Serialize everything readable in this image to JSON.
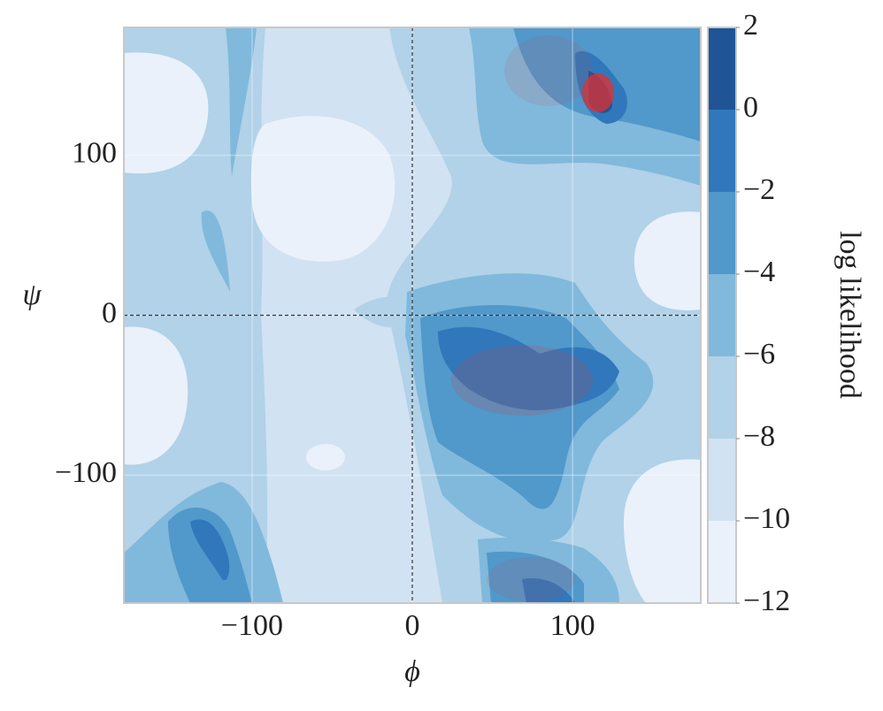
{
  "chart_data": {
    "type": "contour",
    "xlabel": "ϕ",
    "ylabel": "ψ",
    "colorbar_label": "log likelihood",
    "xlim": [
      -180,
      180
    ],
    "ylim": [
      -180,
      180
    ],
    "xticks": [
      {
        "value": -100,
        "label": "−100"
      },
      0,
      100
    ],
    "yticks": [
      {
        "value": -100,
        "label": "−100"
      },
      0,
      100
    ],
    "grid": true,
    "hlines": [
      0
    ],
    "vlines": [
      0
    ],
    "levels": [
      -12,
      -10,
      -8,
      -6,
      -4,
      -2,
      0,
      2
    ],
    "colors": [
      "#eaf1fa",
      "#d1e2f2",
      "#b1d2e8",
      "#80b9dc",
      "#5198cb",
      "#3078bb",
      "#1f5496"
    ],
    "clim": [
      -12,
      2
    ],
    "cticks": [
      {
        "value": -12,
        "label": "−12"
      },
      {
        "value": -10,
        "label": "−10"
      },
      {
        "value": -8,
        "label": "−8"
      },
      {
        "value": -6,
        "label": "−6"
      },
      {
        "value": -4,
        "label": "−4"
      },
      {
        "value": -2,
        "label": "−2"
      },
      0,
      2
    ]
  }
}
